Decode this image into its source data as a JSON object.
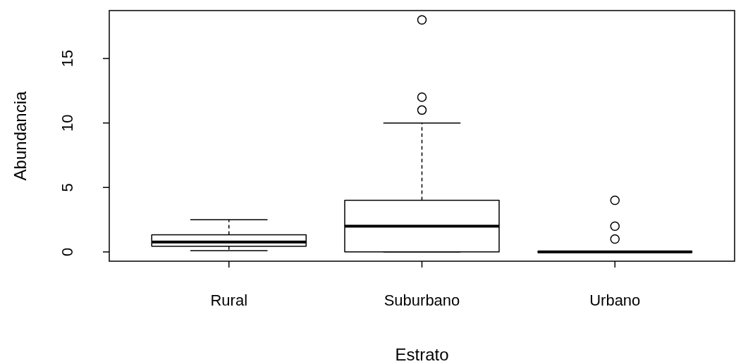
{
  "chart_data": {
    "type": "box",
    "xlabel": "Estrato",
    "ylabel": "Abundancia",
    "categories": [
      "Rural",
      "Suburbano",
      "Urbano"
    ],
    "boxes": [
      {
        "low": 0.1,
        "q1": 0.44,
        "median": 0.77,
        "q3": 1.33,
        "high": 2.5
      },
      {
        "low": 0,
        "q1": 0,
        "median": 2,
        "q3": 4,
        "high": 10,
        "outliers": [
          11,
          12,
          18
        ]
      },
      {
        "low": 0,
        "q1": 0,
        "median": 0,
        "q3": 0,
        "high": 0,
        "outliers": [
          1,
          2,
          4
        ]
      }
    ],
    "ylim": [
      -0.72,
      18.72
    ],
    "yticks": [
      0,
      5,
      10,
      15
    ],
    "color": "#000000",
    "grid": false,
    "legend": false
  }
}
